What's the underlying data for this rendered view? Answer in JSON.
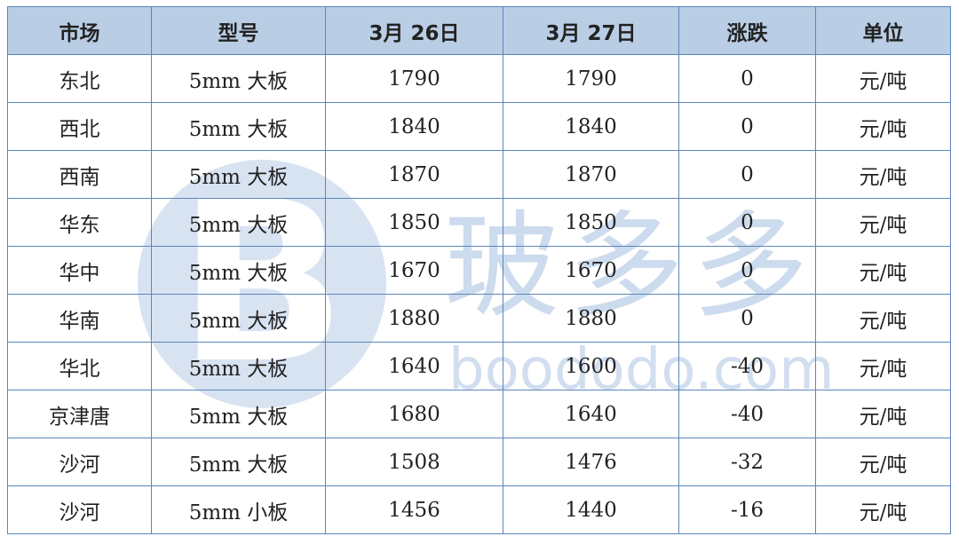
{
  "headers": [
    "市场",
    "型号",
    "3月 26日",
    "3月 27日",
    "涨跌",
    "单位"
  ],
  "rows": [
    [
      "东北",
      "5mm  大板",
      "1790",
      "1790",
      "0",
      "元/吨"
    ],
    [
      "西北",
      "5mm  大板",
      "1840",
      "1840",
      "0",
      "元/吨"
    ],
    [
      "西南",
      "5mm  大板",
      "1870",
      "1870",
      "0",
      "元/吨"
    ],
    [
      "华东",
      "5mm  大板",
      "1850",
      "1850",
      "0",
      "元/吨"
    ],
    [
      "华中",
      "5mm  大板",
      "1670",
      "1670",
      "0",
      "元/吨"
    ],
    [
      "华南",
      "5mm  大板",
      "1880",
      "1880",
      "0",
      "元/吨"
    ],
    [
      "华北",
      "5mm  大板",
      "1640",
      "1600",
      "-40",
      "元/吨"
    ],
    [
      "京津唐",
      "5mm  大板",
      "1680",
      "1640",
      "-40",
      "元/吨"
    ],
    [
      "沙河",
      "5mm  大板",
      "1508",
      "1476",
      "-32",
      "元/吨"
    ],
    [
      "沙河",
      "5mm  小板",
      "1456",
      "1440",
      "-16",
      "元/吨"
    ]
  ],
  "watermark": {
    "cn": "玻多多",
    "en": "boododo.com"
  },
  "colors": {
    "header_bg": "#b9cde5",
    "border": "#5b86bd"
  }
}
